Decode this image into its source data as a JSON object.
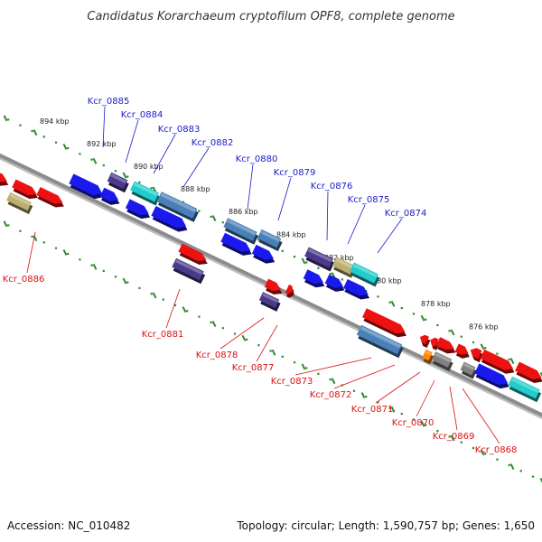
{
  "title": "Candidatus Korarchaeum cryptofilum OPF8, complete genome",
  "footer": {
    "accession": "Accession: NC_010482",
    "summary": "Topology: circular; Length: 1,590,757 bp; Genes: 1,650"
  },
  "colors": {
    "backbone": "#8c8c8c",
    "tick": "#2e8b2e",
    "label_top": "#1a1acc",
    "label_bottom": "#dd1111",
    "red": "#ee1111",
    "blue": "#1a1aee",
    "steel": "#4a80b8",
    "cyan": "#22cccc",
    "purple": "#4a3a8a",
    "olive": "#bcb070",
    "gray": "#808080",
    "orange": "#ff8800"
  },
  "scale_labels": [
    "894 kbp",
    "892 kbp",
    "890 kbp",
    "888 kbp",
    "886 kbp",
    "884 kbp",
    "882 kbp",
    "880 kbp",
    "878 kbp",
    "876 kbp"
  ],
  "top_labels": [
    "Kcr_0885",
    "Kcr_0884",
    "Kcr_0883",
    "Kcr_0882",
    "Kcr_0880",
    "Kcr_0879",
    "Kcr_0876",
    "Kcr_0875",
    "Kcr_0874"
  ],
  "bottom_labels": [
    "Kcr_0886",
    "Kcr_0881",
    "Kcr_0878",
    "Kcr_0877",
    "Kcr_0873",
    "Kcr_0872",
    "Kcr_0871",
    "Kcr_0870",
    "Kcr_0869",
    "Kcr_0868"
  ]
}
